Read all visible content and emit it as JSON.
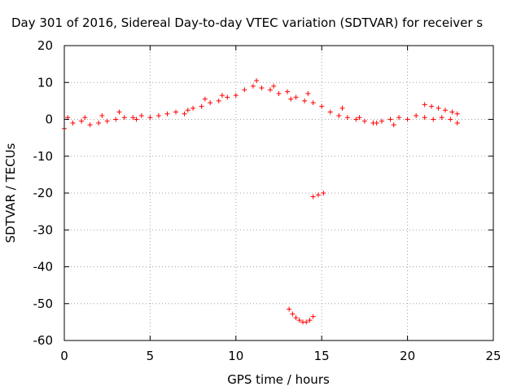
{
  "chart_data": {
    "type": "scatter",
    "title": "Day 301 of 2016, Sidereal Day-to-day VTEC variation (SDTVAR) for receiver s",
    "xlabel": "GPS time / hours",
    "ylabel": "SDTVAR / TECUs",
    "xlim": [
      0,
      25
    ],
    "ylim": [
      -60,
      20
    ],
    "xticks": [
      "0",
      "5",
      "10",
      "15",
      "20",
      "25"
    ],
    "yticks": [
      "-60",
      "-50",
      "-40",
      "-30",
      "-20",
      "-10",
      "0",
      "10",
      "20"
    ],
    "grid": true,
    "marker": "+",
    "series": [
      {
        "color": "#ff0000",
        "x": [
          0.0,
          0.5,
          1.0,
          1.5,
          2.0,
          2.5,
          3.0,
          3.5,
          4.0,
          4.5,
          5.0,
          5.5,
          6.0,
          6.5,
          7.0,
          7.5,
          8.0,
          8.5,
          9.0,
          9.5,
          10.0,
          10.5,
          11.0,
          11.5,
          12.0,
          12.5,
          13.0,
          13.5,
          14.0,
          14.5,
          15.0,
          15.5,
          16.0,
          16.5,
          17.0,
          17.5,
          18.0,
          18.5,
          19.0,
          19.5,
          20.0,
          20.5,
          21.0,
          21.5,
          22.0,
          22.5,
          22.9,
          0.2,
          1.2,
          2.2,
          3.2,
          4.2,
          7.2,
          8.2,
          9.2,
          11.2,
          12.2,
          13.2,
          14.2,
          16.2,
          17.2,
          18.2,
          19.2,
          21.0,
          21.4,
          21.8,
          22.2,
          22.6,
          22.9,
          14.5,
          14.8,
          15.1,
          13.1,
          13.3,
          13.5,
          13.7,
          13.9,
          14.1,
          14.3,
          14.5
        ],
        "y": [
          -2.5,
          -1.0,
          -0.5,
          -1.5,
          -1.0,
          -0.5,
          0.0,
          0.5,
          0.5,
          1.0,
          0.5,
          1.0,
          1.5,
          2.0,
          1.5,
          3.0,
          3.5,
          4.5,
          5.0,
          6.0,
          6.5,
          8.0,
          9.0,
          8.5,
          8.0,
          7.0,
          7.5,
          6.0,
          5.0,
          4.5,
          3.5,
          2.0,
          1.0,
          0.5,
          0.0,
          -0.5,
          -1.0,
          -0.5,
          0.0,
          0.5,
          0.0,
          1.0,
          0.5,
          0.0,
          0.5,
          0.0,
          -1.0,
          0.5,
          0.5,
          1.0,
          2.0,
          0.0,
          2.5,
          5.5,
          6.5,
          10.5,
          9.0,
          5.5,
          7.0,
          3.0,
          0.5,
          -1.0,
          -1.5,
          4.0,
          3.5,
          3.0,
          2.5,
          2.0,
          1.5,
          -21.0,
          -20.5,
          -20.0,
          -51.5,
          -52.8,
          -53.8,
          -54.5,
          -55.0,
          -55.0,
          -54.5,
          -53.5
        ]
      }
    ]
  }
}
